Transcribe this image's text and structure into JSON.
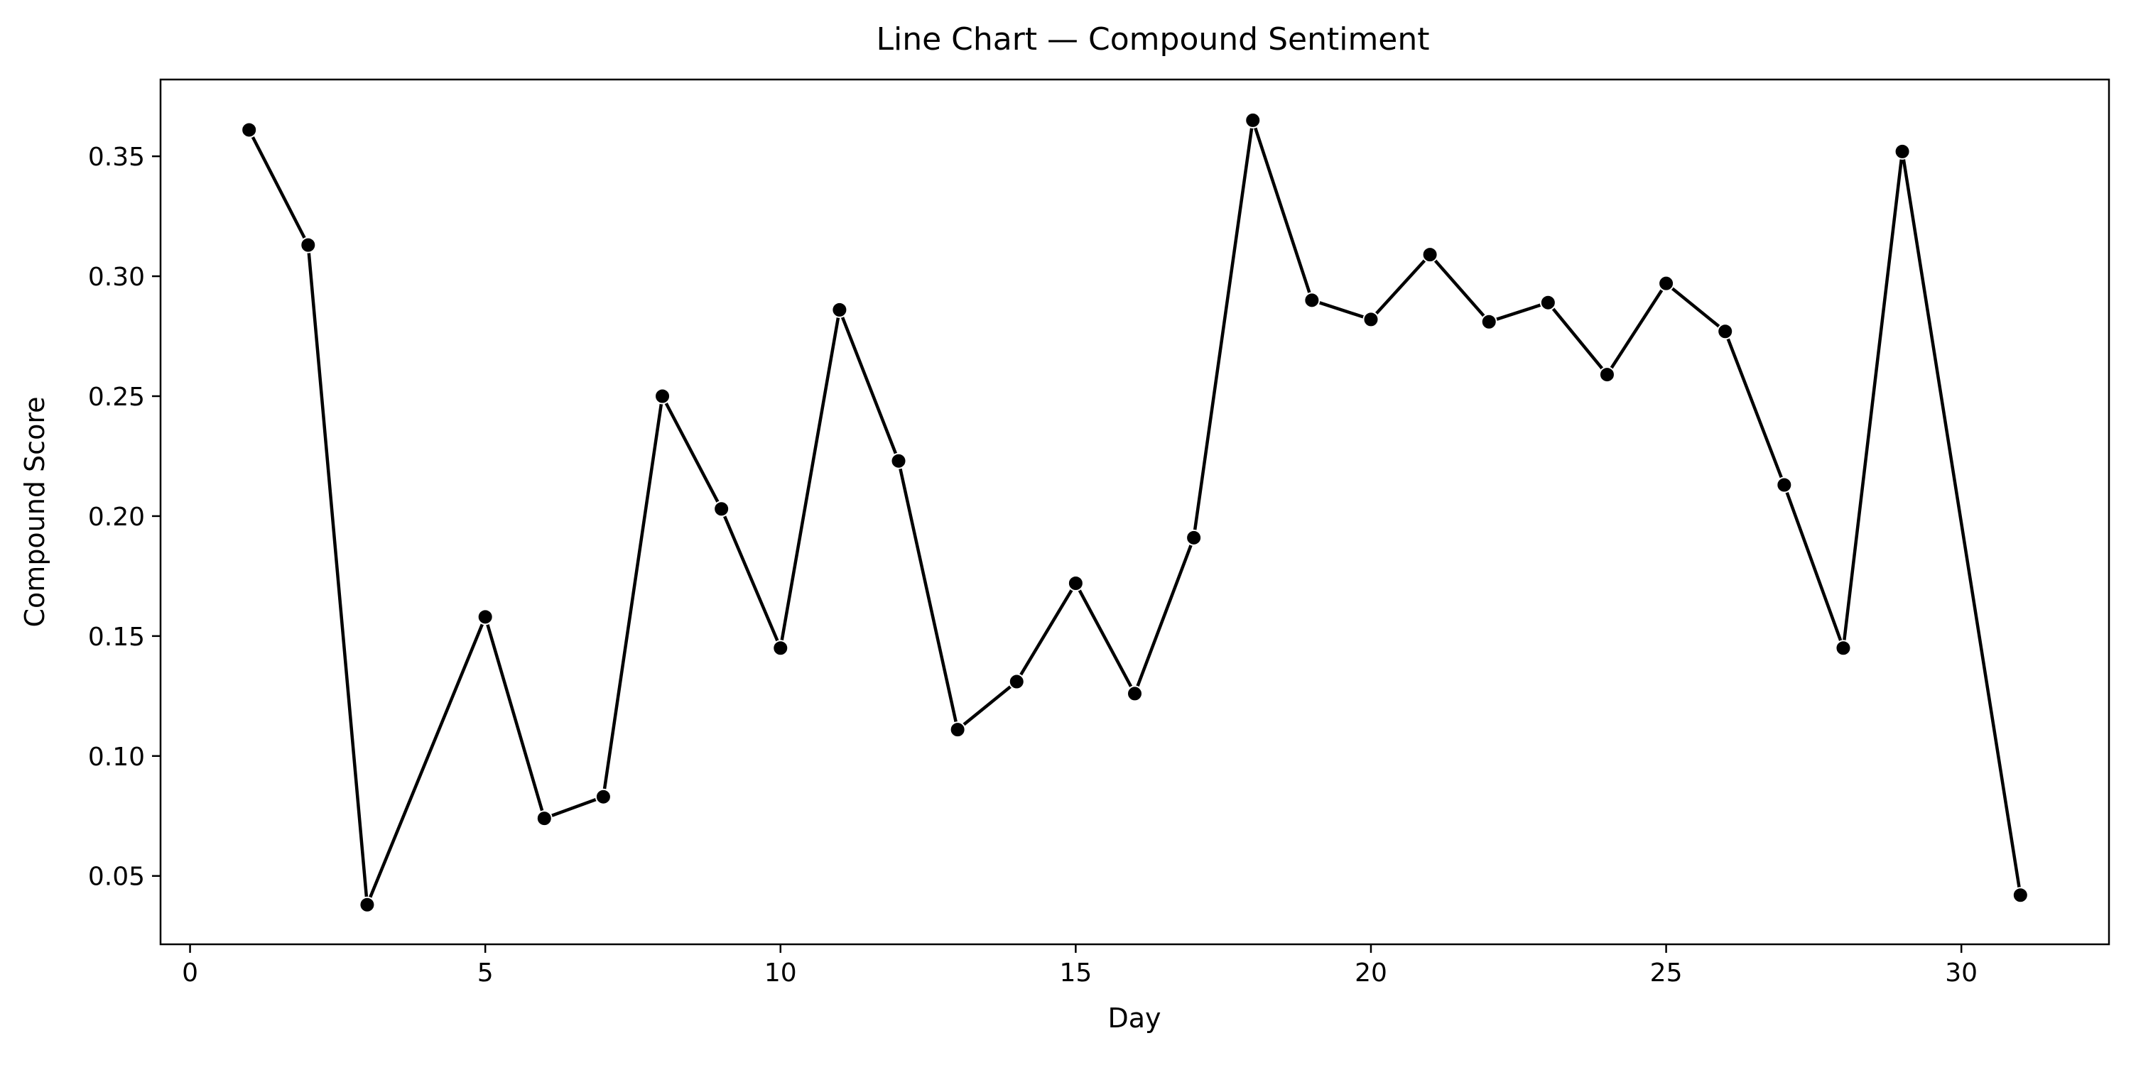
{
  "chart_data": {
    "type": "line",
    "title": "Line Chart — Compound Sentiment",
    "xlabel": "Day",
    "ylabel": "Compound Score",
    "xlim": [
      -0.5,
      32.5
    ],
    "ylim": [
      0.0215,
      0.382
    ],
    "xticks": [
      0,
      5,
      10,
      15,
      20,
      25,
      30
    ],
    "yticks": [
      0.05,
      0.1,
      0.15,
      0.2,
      0.25,
      0.3,
      0.35
    ],
    "ytick_labels": [
      "0.05",
      "0.10",
      "0.15",
      "0.20",
      "0.25",
      "0.30",
      "0.35"
    ],
    "grid": false,
    "series": [
      {
        "color": "#000000",
        "marker": "circle",
        "x": [
          1,
          2,
          3,
          4,
          5,
          6,
          7,
          8,
          9,
          10,
          11,
          12,
          13,
          14,
          15,
          16,
          17,
          18,
          19,
          20,
          21,
          22,
          23,
          24,
          25,
          26,
          27,
          28,
          29,
          30,
          31
        ],
        "y": [
          0.361,
          0.313,
          0.038,
          0.098,
          0.158,
          0.074,
          0.083,
          0.25,
          0.203,
          0.145,
          0.286,
          0.223,
          0.111,
          0.131,
          0.172,
          0.126,
          0.191,
          0.365,
          0.29,
          0.282,
          0.309,
          0.281,
          0.289,
          0.259,
          0.297,
          0.277,
          0.213,
          0.145,
          0.352,
          0.197,
          0.042
        ],
        "markers_shown": [
          true,
          true,
          true,
          false,
          true,
          true,
          true,
          true,
          true,
          true,
          true,
          true,
          true,
          true,
          true,
          true,
          true,
          true,
          true,
          true,
          true,
          true,
          true,
          true,
          true,
          true,
          true,
          true,
          true,
          false,
          true
        ]
      }
    ]
  }
}
